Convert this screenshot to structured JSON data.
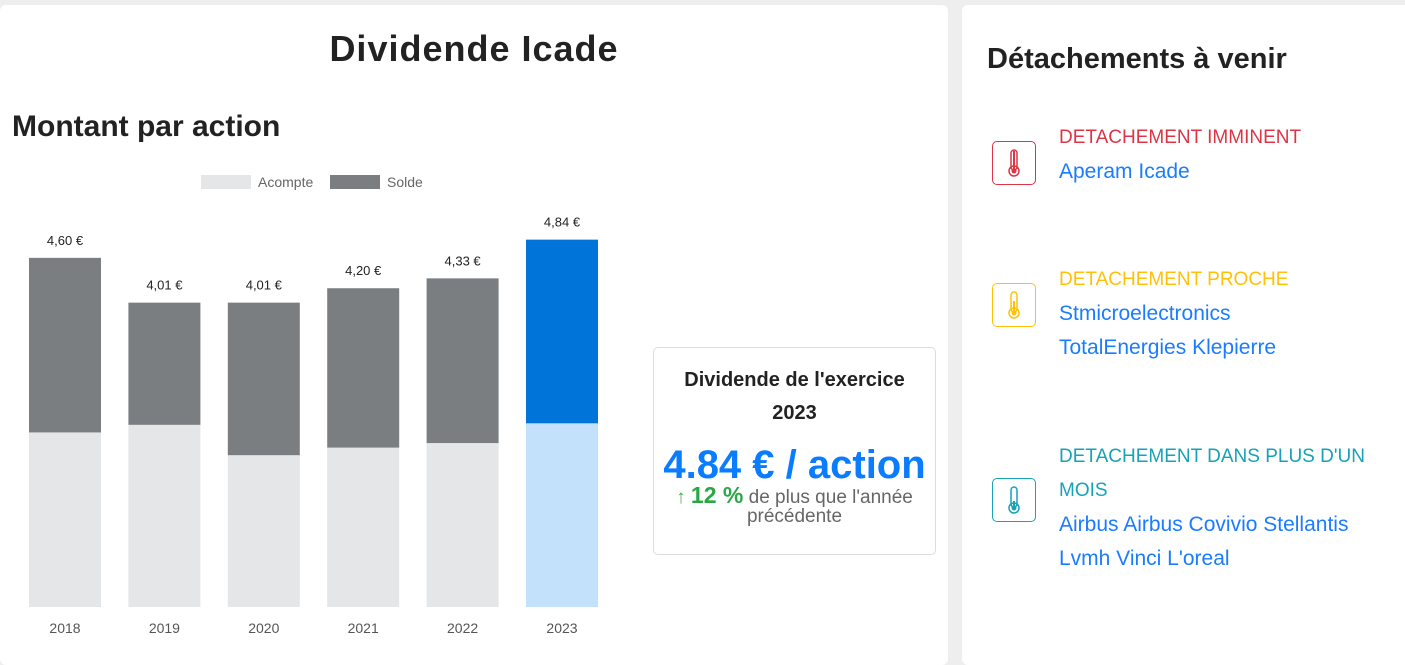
{
  "title": "Dividende Icade",
  "subtitle": "Montant par action",
  "chart_data": {
    "type": "bar",
    "stacked": true,
    "categories": [
      "2018",
      "2019",
      "2020",
      "2021",
      "2022",
      "2023"
    ],
    "series": [
      {
        "name": "Acompte",
        "values": [
          2.3,
          2.4,
          2.0,
          2.1,
          2.16,
          2.42
        ],
        "color": "#e5e6e8",
        "highlight_color": "#c3e1fa"
      },
      {
        "name": "Solde",
        "values": [
          2.3,
          1.61,
          2.01,
          2.1,
          2.17,
          2.42
        ],
        "color": "#7b7e80",
        "highlight_color": "#0074d9"
      }
    ],
    "totals": [
      4.6,
      4.01,
      4.01,
      4.2,
      4.33,
      4.84
    ],
    "total_labels": [
      "4,60 €",
      "4,01 €",
      "4,01 €",
      "4,20 €",
      "4,33 €",
      "4,84 €"
    ],
    "highlight_category": "2023",
    "legend_position": "top-center",
    "ylim": [
      0,
      4.84
    ],
    "grid": false
  },
  "kpi": {
    "title": "Dividende de l'exercice 2023",
    "value": "4.84 € / action",
    "arrow": "↑",
    "delta": "12 %",
    "delta_text": "de plus que l'année précédente"
  },
  "upcoming": {
    "title": "Détachements à venir",
    "groups": [
      {
        "label": "DETACHEMENT IMMINENT",
        "color": "#dc3545",
        "icon": "thermometer-full-icon",
        "stocks": [
          "Aperam Icade"
        ]
      },
      {
        "label": "DETACHEMENT PROCHE",
        "color": "#ffc107",
        "icon": "thermometer-half-icon",
        "stocks": [
          "Stmicroelectronics",
          "TotalEnergies Klepierre"
        ]
      },
      {
        "label": "DETACHEMENT DANS PLUS D'UN MOIS",
        "color": "#17a2b8",
        "icon": "thermometer-low-icon",
        "stocks": [
          "Airbus Airbus Covivio Stellantis",
          "Lvmh Vinci L'oreal"
        ]
      }
    ]
  }
}
